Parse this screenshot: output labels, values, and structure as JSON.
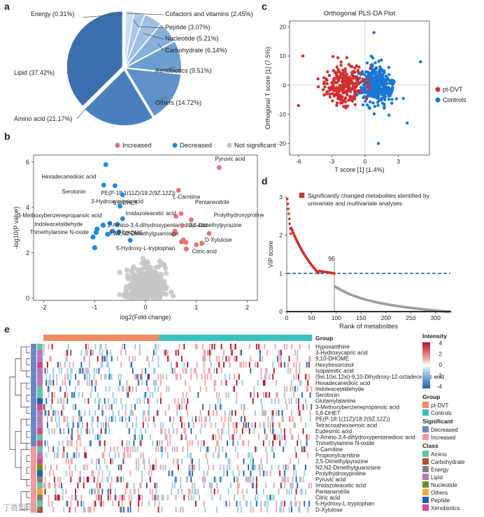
{
  "panel_labels": [
    "a",
    "b",
    "c",
    "d",
    "e"
  ],
  "colors": {
    "increased": "#e57373",
    "decreased": "#1e88e5",
    "not_significant": "#c7c7c7",
    "pt_dvt": "#d32f2f",
    "controls": "#1976d2",
    "threshold_line": "#1a6fa8"
  },
  "watermark": "丁香园论坛",
  "chart_data": [
    {
      "type": "pie",
      "id": "a",
      "slices": [
        {
          "label": "Energy (0.31%)",
          "value": 0.31,
          "color": "#c3d8ec"
        },
        {
          "label": "Cofactors and vitamins (2.45%)",
          "value": 2.45,
          "color": "#c9ddef"
        },
        {
          "label": "Peptide (3.07%)",
          "value": 3.07,
          "color": "#a9c7e6"
        },
        {
          "label": "Nucleotide (5.21%)",
          "value": 5.21,
          "color": "#9fc0e3"
        },
        {
          "label": "Carbohydrate (6.14%)",
          "value": 6.14,
          "color": "#86b0da"
        },
        {
          "label": "Xenobiotics (9.51%)",
          "value": 9.51,
          "color": "#6c9fd1"
        },
        {
          "label": "Others (14.72%)",
          "value": 14.72,
          "color": "#5d91c8"
        },
        {
          "label": "Amino acid (21.17%)",
          "value": 21.17,
          "color": "#4a7fbd"
        },
        {
          "label": "Lipid (37.42%)",
          "value": 37.42,
          "color": "#3c6fad"
        }
      ]
    },
    {
      "type": "scatter",
      "id": "b",
      "xlabel": "log2(Fold change)",
      "ylabel": "-log10(P value)",
      "xlim": [
        -2.2,
        2.2
      ],
      "ylim": [
        -0.1,
        6.3
      ],
      "xticks": [
        -2,
        -1,
        0,
        1,
        2
      ],
      "yticks": [
        0,
        2,
        4,
        6
      ],
      "legend": [
        "Increased",
        "Decreased",
        "Not significant"
      ],
      "labeled_points": [
        {
          "label": "Hexadecanedioic acid",
          "x": -0.78,
          "y": 5.88,
          "group": "Decreased"
        },
        {
          "label": "Pyruvic acid",
          "x": 1.45,
          "y": 5.75,
          "group": "Increased"
        },
        {
          "label": "Serotonin",
          "x": -0.82,
          "y": 4.98,
          "group": "Decreased"
        },
        {
          "label": "PE(P-18:1(11Z)/18:2(9Z,12Z))",
          "x": -0.6,
          "y": 4.95,
          "group": "Decreased"
        },
        {
          "label": "L-Carnitine",
          "x": 0.65,
          "y": 4.75,
          "group": "Increased"
        },
        {
          "label": "3-Hydroxycapric acid",
          "x": -0.45,
          "y": 4.55,
          "group": "Decreased"
        },
        {
          "label": "5,6-DHET",
          "x": -0.5,
          "y": 4.05,
          "group": "Decreased"
        },
        {
          "label": "Pentanenitrile",
          "x": 0.7,
          "y": 3.72,
          "group": "Increased"
        },
        {
          "label": "Imidazoleacetic acid",
          "x": 0.6,
          "y": 3.6,
          "group": "Increased"
        },
        {
          "label": "3-Methoxybenzenepropanoic acid",
          "x": -0.45,
          "y": 3.5,
          "group": "Decreased"
        },
        {
          "label": "Prolylhydroxyproline",
          "x": 0.9,
          "y": 3.45,
          "group": "Increased"
        },
        {
          "label": "Indoleacetaldehyde",
          "x": -0.7,
          "y": 3.3,
          "group": "Decreased"
        },
        {
          "label": "2-Amino-3,4-dihydroxypentanedioic acid",
          "x": -0.55,
          "y": 3.25,
          "group": "Decreased"
        },
        {
          "label": "2,5-Dimethylpyrazine",
          "x": 0.72,
          "y": 3.2,
          "group": "Increased"
        },
        {
          "label": "Trimethylamine N-oxide",
          "x": -0.65,
          "y": 2.95,
          "group": "Decreased"
        },
        {
          "label": "9,10-DHOME",
          "x": -0.52,
          "y": 2.92,
          "group": "Decreased"
        },
        {
          "label": "N2,N2-Dimethylguanosine",
          "x": 0.58,
          "y": 2.95,
          "group": "Increased"
        },
        {
          "label": "D-Xylulose",
          "x": 1.25,
          "y": 2.85,
          "group": "Increased"
        },
        {
          "label": "5-Hydroxy-L-tryptophan",
          "x": -0.3,
          "y": 2.55,
          "group": "Decreased"
        },
        {
          "label": "Citric acid",
          "x": 1.0,
          "y": 2.35,
          "group": "Increased"
        }
      ]
    },
    {
      "type": "scatter",
      "id": "c",
      "title": "Orthogonal PLS-DA Plot",
      "xlabel": "T score [1] (1.4%)",
      "ylabel": "Orthogonal T score [1] (7.5%)",
      "xlim": [
        -6.8,
        5.8
      ],
      "ylim": [
        -24,
        22
      ],
      "xticks": [
        -6,
        -3,
        0,
        3
      ],
      "yticks": [
        -20,
        -10,
        0,
        10,
        20
      ],
      "legend": [
        "pt-DVT",
        "Controls"
      ],
      "series": [
        {
          "name": "pt-DVT",
          "center": [
            -1.8,
            0
          ],
          "approx_n": 250
        },
        {
          "name": "Controls",
          "center": [
            1.0,
            0
          ],
          "approx_n": 380
        }
      ]
    },
    {
      "type": "line",
      "id": "d",
      "xlabel": "Rank of metabolites",
      "ylabel": "VIP score",
      "xlim": [
        0,
        330
      ],
      "ylim": [
        0,
        3
      ],
      "xticks": [
        0,
        50,
        100,
        150,
        200,
        250,
        300
      ],
      "yticks": [
        0,
        1,
        2,
        3
      ],
      "threshold": 1,
      "cutoff_rank": 96,
      "cutoff_label": "96",
      "legend_text": "Significantly changed metabolites identified by univariate and multivariate analyses"
    },
    {
      "type": "heatmap",
      "id": "e",
      "group_title": "Group",
      "metabolites": [
        "Hypoxanthine",
        "3-Hydroxycapric acid",
        "9,10-DHOME",
        "Hexylresorcinol",
        "Isopalmitic acid",
        "(9xi,10xi,12xi)-9,10-Dihydroxy-12-octadecenoic acid",
        "Hexadecanedioic acid",
        "Indoleacetaldehyde",
        "Serotonin",
        "Glutamylalanine",
        "3-Methoxybenzenepropanoic acid",
        "5,6-DHET",
        "PE(P-18:1(11Z)/18:2(9Z,12Z))",
        "Tetracosahexaenoic acid",
        "Eudesmic acid",
        "2-Amino-3,4-dihydroxypentanedioic acid",
        "Trimethylamine N-oxide",
        "L-Carnitine",
        "Propionylcarnitine",
        "2,5-Dimethylpyrazine",
        "N2,N2-Dimethylguanosine",
        "Prolylhydroxyproline",
        "Pyruvic acid",
        "Imidazoleacetic acid",
        "Pentanenitrile",
        "Citric acid",
        "5-Hydroxy-L-tryptophan",
        "D-Xylulose"
      ],
      "significant": [
        "Decreased",
        "Decreased",
        "Decreased",
        "Decreased",
        "Decreased",
        "Decreased",
        "Decreased",
        "Decreased",
        "Decreased",
        "Decreased",
        "Decreased",
        "Decreased",
        "Decreased",
        "Decreased",
        "Decreased",
        "Decreased",
        "Decreased",
        "Increased",
        "Increased",
        "Increased",
        "Increased",
        "Increased",
        "Increased",
        "Increased",
        "Increased",
        "Increased",
        "Increased",
        "Increased"
      ],
      "classes": [
        "Amino",
        "Lipid",
        "Lipid",
        "Xenobiotics",
        "Lipid",
        "Lipid",
        "Lipid",
        "Amino",
        "Amino",
        "Peptide",
        "Xenobiotics",
        "Lipid",
        "Lipid",
        "Lipid",
        "Xenobiotics",
        "Amino",
        "Xenobiotics",
        "Amino",
        "Lipid",
        "Xenobiotics",
        "Nucleotide",
        "Peptide",
        "Energy",
        "Amino",
        "Others",
        "Energy",
        "Amino",
        "Carbohydrate"
      ],
      "intensity": {
        "title": "Intensity",
        "min": -4,
        "max": 4,
        "ticks": [
          4,
          2,
          0,
          -2,
          -4
        ]
      },
      "groups": [
        {
          "name": "pt-DVT",
          "fraction": 0.43,
          "color": "#ef8a62"
        },
        {
          "name": "Controls",
          "fraction": 0.57,
          "color": "#35c2c0"
        }
      ],
      "legend": {
        "group_title": "Group",
        "group_items": [
          {
            "name": "pt-DVT",
            "color": "#ef8a62"
          },
          {
            "name": "Controls",
            "color": "#35c2c0"
          }
        ],
        "significant_title": "Significant",
        "significant_items": [
          {
            "name": "Decreased",
            "color": "#6a86c6"
          },
          {
            "name": "Increased",
            "color": "#ef9a9a"
          }
        ],
        "class_title": "Class",
        "class_items": [
          {
            "name": "Amino",
            "color": "#66c2a5"
          },
          {
            "name": "Carbohydrate",
            "color": "#a0522d"
          },
          {
            "name": "Energy",
            "color": "#7e7e7e"
          },
          {
            "name": "Lipid",
            "color": "#b57ab8"
          },
          {
            "name": "Nucleotide",
            "color": "#6b8e23"
          },
          {
            "name": "Others",
            "color": "#f0a830"
          },
          {
            "name": "Peptide",
            "color": "#1f62b4"
          },
          {
            "name": "Xenobiotics",
            "color": "#d14a8b"
          }
        ]
      }
    }
  ]
}
